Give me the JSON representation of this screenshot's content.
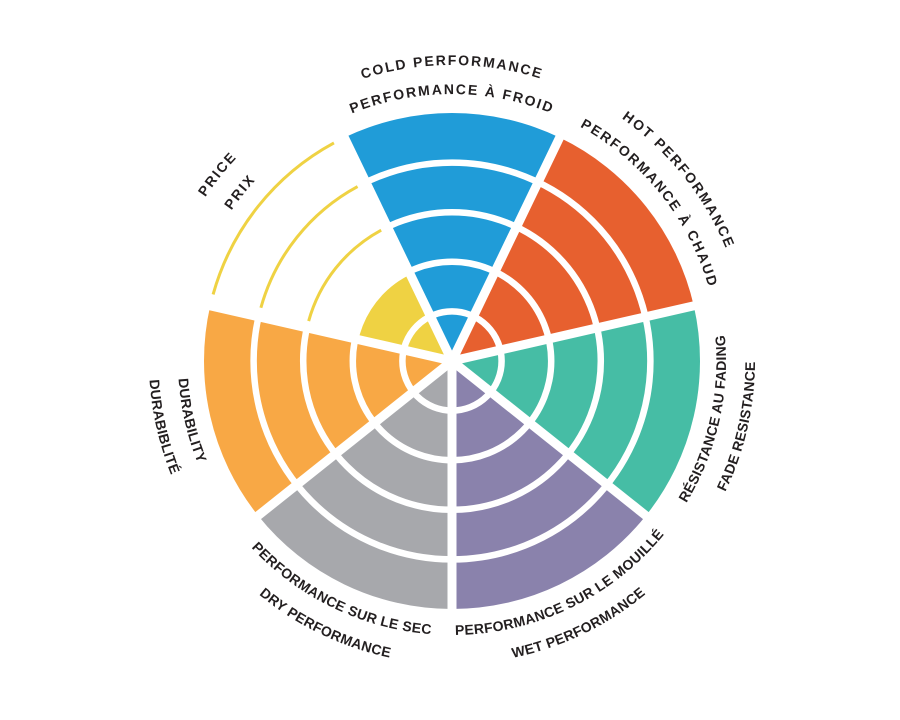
{
  "page": {
    "background_color": "#FFFFFF"
  },
  "chart_data": {
    "type": "pie",
    "subtype": "polar-rating-wheel",
    "description": "Seven-sector performance rating wheel; each sector is rated on 5 concentric rings. Filled rings indicate the score; unreached rings of the Price sector are drawn as thin colored arc outlines.",
    "rings": 5,
    "max_rating": 5,
    "rotation": "first sector centered at top, sectors proceed clockwise",
    "background": "#FFFFFF",
    "separator_color": "#FFFFFF",
    "label_color": "#231F20",
    "categories": [
      {
        "id": "cold-performance",
        "label_en": "COLD PERFORMANCE",
        "label_fr": "PERFORMANCE À FROID",
        "value": 5,
        "color": "#209CD8",
        "label_arc": "top",
        "outer_line": "en",
        "outline_remaining_rings": false
      },
      {
        "id": "hot-performance",
        "label_en": "HOT PERFORMANCE",
        "label_fr": "PERFORMANCE À CHAUD",
        "value": 5,
        "color": "#E7602F",
        "label_arc": "top",
        "outer_line": "en",
        "outline_remaining_rings": false
      },
      {
        "id": "fade-resistance",
        "label_en": "FADE RESISTANCE",
        "label_fr": "RÉSISTANCE AU FADING",
        "value": 5,
        "color": "#46BDA5",
        "label_arc": "bottom",
        "outer_line": "en",
        "outline_remaining_rings": false
      },
      {
        "id": "wet-performance",
        "label_en": "WET PERFORMANCE",
        "label_fr": "PERFORMANCE SUR LE MOUILLÉ",
        "value": 5,
        "color": "#8A82AC",
        "label_arc": "bottom",
        "outer_line": "en",
        "outline_remaining_rings": false
      },
      {
        "id": "dry-performance",
        "label_en": "DRY PERFORMANCE",
        "label_fr": "PERFORMANCE SUR LE SEC",
        "value": 5,
        "color": "#A7A8AC",
        "label_arc": "bottom",
        "outer_line": "en",
        "outline_remaining_rings": false
      },
      {
        "id": "durability",
        "label_en": "DURABILITY",
        "label_fr": "DURABIBLITÉ",
        "value": 5,
        "color": "#F8A845",
        "label_arc": "bottom",
        "outer_line": "fr",
        "outline_remaining_rings": false
      },
      {
        "id": "price",
        "label_en": "PRICE",
        "label_fr": "PRIX",
        "value": 2,
        "color": "#EFD243",
        "label_arc": "top",
        "outer_line": "en",
        "outline_remaining_rings": true
      }
    ]
  }
}
